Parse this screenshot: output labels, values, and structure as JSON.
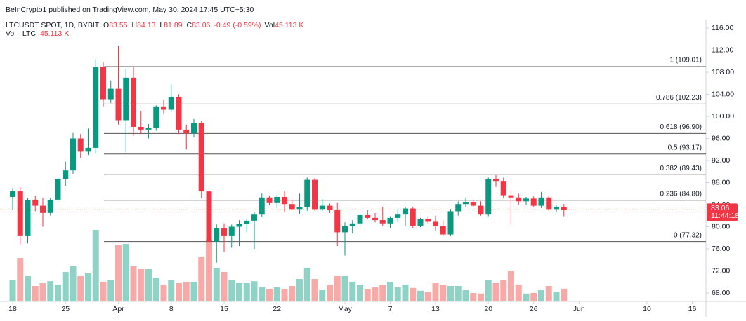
{
  "chart_data": {
    "type": "candlestick",
    "attribution": "BeInCrypto1 published on TradingView.com, May 30, 2024 17:45 UTC+5:30",
    "symbol": "LTCUSDT SPOT, 1D, BYBIT",
    "legend": [
      {
        "key": "O",
        "value": 83.55
      },
      {
        "key": "H",
        "value": 84.13
      },
      {
        "key": "L",
        "value": 81.89
      },
      {
        "key": "C",
        "value": 83.06
      }
    ],
    "change_label": "-0.49 (-0.59%)",
    "volume_legend": {
      "key": "Vol",
      "label": "45.113 K"
    },
    "volume_pane": {
      "title": "Vol · LTC",
      "label": "45.113 K"
    },
    "up_color": "#089981",
    "down_color": "#f23645",
    "up_volume_color": "#8fd3c6",
    "down_volume_color": "#f7aaa8",
    "x": [
      "2024-03-18",
      "2024-03-19",
      "2024-03-20",
      "2024-03-21",
      "2024-03-22",
      "2024-03-23",
      "2024-03-24",
      "2024-03-25",
      "2024-03-26",
      "2024-03-27",
      "2024-03-28",
      "2024-03-29",
      "2024-03-30",
      "2024-03-31",
      "2024-04-01",
      "2024-04-02",
      "2024-04-03",
      "2024-04-04",
      "2024-04-05",
      "2024-04-06",
      "2024-04-07",
      "2024-04-08",
      "2024-04-09",
      "2024-04-10",
      "2024-04-11",
      "2024-04-12",
      "2024-04-13",
      "2024-04-14",
      "2024-04-15",
      "2024-04-16",
      "2024-04-17",
      "2024-04-18",
      "2024-04-19",
      "2024-04-20",
      "2024-04-21",
      "2024-04-22",
      "2024-04-23",
      "2024-04-24",
      "2024-04-25",
      "2024-04-26",
      "2024-04-27",
      "2024-04-28",
      "2024-04-29",
      "2024-04-30",
      "2024-05-01",
      "2024-05-02",
      "2024-05-03",
      "2024-05-04",
      "2024-05-05",
      "2024-05-06",
      "2024-05-07",
      "2024-05-08",
      "2024-05-09",
      "2024-05-10",
      "2024-05-11",
      "2024-05-12",
      "2024-05-13",
      "2024-05-14",
      "2024-05-15",
      "2024-05-16",
      "2024-05-17",
      "2024-05-18",
      "2024-05-19",
      "2024-05-20",
      "2024-05-21",
      "2024-05-22",
      "2024-05-23",
      "2024-05-24",
      "2024-05-25",
      "2024-05-26",
      "2024-05-27",
      "2024-05-28",
      "2024-05-29",
      "2024-05-30"
    ],
    "open": [
      85.4,
      86.5,
      78.3,
      84.9,
      83.8,
      82.5,
      84.9,
      88.6,
      90.2,
      96.0,
      93.6,
      94.3,
      109.0,
      103.1,
      105.0,
      99.3,
      107.0,
      98.1,
      97.6,
      97.9,
      101.8,
      101.2,
      103.5,
      97.6,
      96.9,
      98.8,
      86.4,
      77.3,
      79.7,
      78.3,
      80.0,
      80.5,
      81.1,
      82.2,
      85.3,
      84.4,
      85.4,
      84.1,
      83.2,
      83.5,
      88.5,
      83.2,
      83.8,
      83.1,
      79.0,
      80.1,
      80.6,
      82.1,
      81.6,
      81.2,
      80.6,
      81.6,
      82.2,
      83.3,
      80.2,
      81.4,
      80.9,
      80.1,
      78.6,
      82.8,
      84.1,
      84.5,
      83.8,
      82.2,
      88.6,
      88.3,
      85.7,
      85.3,
      84.6,
      85.1,
      83.8,
      85.3,
      83.2,
      83.55
    ],
    "high": [
      87.0,
      87.2,
      85.2,
      85.6,
      85.2,
      85.2,
      89.0,
      91.8,
      97.0,
      96.8,
      97.8,
      110.3,
      109.8,
      106.5,
      112.8,
      108.5,
      109.0,
      101.0,
      98.6,
      102.0,
      103.0,
      105.8,
      104.0,
      98.5,
      99.5,
      99.2,
      86.6,
      80.4,
      80.6,
      80.4,
      81.2,
      81.5,
      82.6,
      86.0,
      85.6,
      85.8,
      86.5,
      84.9,
      86.0,
      88.9,
      88.8,
      85.0,
      84.2,
      84.4,
      80.8,
      81.2,
      82.4,
      83.0,
      82.5,
      83.6,
      81.9,
      83.2,
      83.6,
      83.6,
      81.6,
      81.9,
      82.0,
      81.0,
      83.2,
      84.6,
      85.3,
      84.8,
      84.6,
      88.9,
      89.5,
      88.9,
      86.6,
      86.0,
      85.4,
      85.5,
      86.3,
      85.6,
      84.0,
      84.13
    ],
    "low": [
      83.0,
      76.8,
      77.0,
      82.8,
      80.0,
      82.0,
      84.5,
      87.4,
      89.6,
      92.5,
      93.0,
      93.2,
      101.8,
      102.4,
      98.5,
      93.5,
      96.5,
      96.8,
      96.0,
      97.4,
      100.5,
      100.8,
      96.8,
      94.0,
      96.2,
      85.2,
      70.5,
      73.5,
      75.5,
      76.2,
      76.5,
      79.0,
      76.0,
      81.8,
      83.9,
      83.4,
      82.6,
      83.0,
      82.3,
      82.9,
      82.9,
      82.8,
      82.5,
      76.5,
      74.8,
      78.8,
      80.0,
      81.4,
      80.8,
      80.2,
      79.8,
      80.8,
      80.2,
      79.8,
      79.9,
      80.6,
      79.3,
      78.3,
      78.3,
      82.0,
      83.5,
      83.5,
      82.0,
      81.9,
      87.2,
      85.2,
      80.3,
      84.0,
      84.0,
      83.6,
      83.4,
      82.9,
      82.6,
      81.89
    ],
    "close": [
      86.5,
      78.3,
      84.9,
      83.8,
      82.5,
      84.9,
      88.6,
      90.2,
      96.0,
      93.6,
      94.3,
      109.0,
      103.1,
      105.0,
      99.3,
      107.0,
      98.1,
      97.6,
      97.9,
      101.8,
      101.2,
      103.5,
      97.6,
      96.9,
      98.8,
      86.4,
      77.3,
      79.7,
      78.3,
      80.0,
      80.5,
      81.1,
      82.2,
      85.3,
      84.4,
      85.4,
      84.1,
      83.2,
      83.5,
      88.5,
      83.2,
      83.8,
      83.1,
      79.0,
      80.1,
      80.6,
      82.1,
      81.6,
      81.2,
      80.6,
      81.6,
      82.2,
      83.3,
      80.2,
      81.4,
      80.9,
      80.1,
      78.6,
      82.8,
      84.1,
      84.5,
      83.8,
      82.2,
      88.6,
      88.3,
      85.7,
      85.3,
      84.6,
      85.1,
      83.8,
      85.3,
      83.2,
      83.55,
      83.06
    ],
    "volume": [
      75,
      155,
      90,
      55,
      65,
      72,
      60,
      105,
      125,
      90,
      100,
      255,
      70,
      75,
      200,
      205,
      125,
      115,
      115,
      85,
      60,
      75,
      65,
      70,
      70,
      160,
      220,
      120,
      105,
      75,
      65,
      65,
      72,
      50,
      45,
      50,
      45,
      55,
      80,
      120,
      80,
      40,
      60,
      90,
      90,
      70,
      60,
      45,
      50,
      60,
      70,
      50,
      60,
      48,
      38,
      35,
      65,
      60,
      55,
      55,
      40,
      30,
      28,
      75,
      65,
      75,
      110,
      60,
      28,
      30,
      40,
      55,
      35,
      45.113
    ],
    "xlim": [
      "2024-03-17",
      "2024-06-17"
    ],
    "xticks": [
      {
        "value": "2024-03-18",
        "label": "18"
      },
      {
        "value": "2024-03-25",
        "label": "25"
      },
      {
        "value": "2024-04-01",
        "label": "Apr"
      },
      {
        "value": "2024-04-08",
        "label": "8"
      },
      {
        "value": "2024-04-15",
        "label": "15"
      },
      {
        "value": "2024-04-22",
        "label": "22"
      },
      {
        "value": "2024-05-01",
        "label": "May"
      },
      {
        "value": "2024-05-07",
        "label": "7"
      },
      {
        "value": "2024-05-13",
        "label": "13"
      },
      {
        "value": "2024-05-20",
        "label": "20"
      },
      {
        "value": "2024-05-26",
        "label": "26"
      },
      {
        "value": "2024-06-01",
        "label": "Jun"
      },
      {
        "value": "2024-06-10",
        "label": "10"
      },
      {
        "value": "2024-06-16",
        "label": "16"
      }
    ],
    "ylim": [
      66.48,
      117.52
    ],
    "yticks": [
      {
        "value": 68,
        "label": "68.00"
      },
      {
        "value": 72,
        "label": "72.00"
      },
      {
        "value": 76,
        "label": "76.00"
      },
      {
        "value": 80,
        "label": "80.00"
      },
      {
        "value": 84,
        "label": "84.00"
      },
      {
        "value": 88,
        "label": "88.00"
      },
      {
        "value": 92,
        "label": "92.00"
      },
      {
        "value": 96,
        "label": "96.00"
      },
      {
        "value": 100,
        "label": "100.00"
      },
      {
        "value": 104,
        "label": "104.00"
      },
      {
        "value": 108,
        "label": "108.00"
      },
      {
        "value": 112,
        "label": "112.00"
      },
      {
        "value": 116,
        "label": "116.00"
      }
    ],
    "fib_levels": [
      {
        "value": 109.01,
        "label": "1 (109.01)"
      },
      {
        "value": 102.23,
        "label": "0.786 (102.23)"
      },
      {
        "value": 96.9,
        "label": "0.618 (96.90)"
      },
      {
        "value": 93.17,
        "label": "0.5 (93.17)"
      },
      {
        "value": 89.43,
        "label": "0.382 (89.43)"
      },
      {
        "value": 84.8,
        "label": "0.236 (84.80)"
      },
      {
        "value": 77.32,
        "label": "0 (77.32)"
      }
    ],
    "last_price": {
      "value": 83.06,
      "label": "83.06",
      "countdown": "11:44:18"
    }
  }
}
